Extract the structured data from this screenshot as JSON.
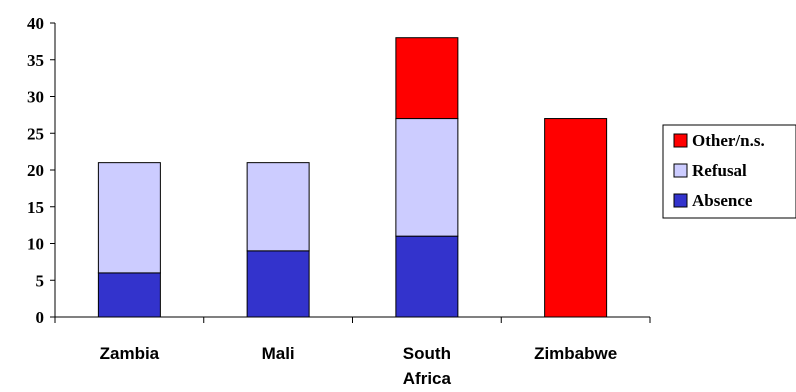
{
  "chart_data": {
    "type": "bar",
    "stacked": true,
    "categories": [
      [
        "Zambia"
      ],
      [
        "Mali"
      ],
      [
        "South",
        "Africa"
      ],
      [
        "Zimbabwe"
      ]
    ],
    "series": [
      {
        "name": "Absence",
        "color": "#3333cc",
        "values": [
          6,
          9,
          11,
          0
        ]
      },
      {
        "name": "Refusal",
        "color": "#ccccff",
        "values": [
          15,
          12,
          16,
          0
        ]
      },
      {
        "name": "Other/n.s.",
        "color": "#ff0000",
        "values": [
          0,
          0,
          11,
          27
        ]
      }
    ],
    "ylim": [
      0,
      40
    ],
    "yticks": [
      0,
      5,
      10,
      15,
      20,
      25,
      30,
      35,
      40
    ],
    "grid": false,
    "legend_position": "right",
    "legend_order": [
      "Other/n.s.",
      "Refusal",
      "Absence"
    ]
  }
}
